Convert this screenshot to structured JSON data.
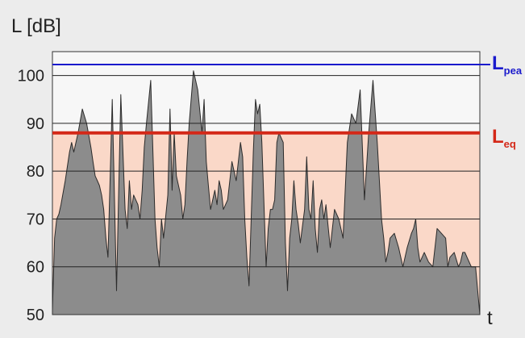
{
  "chart_data": {
    "type": "area",
    "ylabel": "L [dB]",
    "xlabel": "t",
    "ylim": [
      50,
      105
    ],
    "yticks": [
      50,
      60,
      70,
      80,
      90,
      100
    ],
    "grid": true,
    "colors": {
      "figure_bg": "#ececec",
      "plot_bg": "#f7f7f7",
      "below_leq_band": "#fad8c8",
      "area_fill": "#8c8c8c",
      "area_line": "#2b2b2b",
      "gridline": "#222222",
      "lpeak": "#1a1acc",
      "leq": "#d42818"
    },
    "reference_lines": [
      {
        "key": "lpeak",
        "label_main": "L",
        "label_sub": "pea",
        "value": 102.3,
        "color": "#1a1acc"
      },
      {
        "key": "leq",
        "label_main": "L",
        "label_sub": "eq",
        "value": 88,
        "color": "#d42818"
      }
    ],
    "series": [
      {
        "x": [
          0,
          0.5,
          1,
          1.5,
          2,
          3,
          4,
          4.5,
          5,
          6,
          7,
          8,
          9,
          9.5,
          10,
          10.5,
          11,
          11.5,
          12,
          12.5,
          13,
          14,
          15,
          16,
          17,
          17.5,
          18,
          18.5,
          19,
          20,
          20.5,
          21,
          21.5,
          22,
          23,
          24,
          24.5,
          25,
          25.5,
          26,
          27,
          27.5,
          28,
          28.5,
          29,
          30,
          30.5,
          31,
          31.5,
          32,
          33,
          34,
          35,
          35.5,
          36,
          36.5,
          37,
          38,
          38.5,
          39,
          39.5,
          40,
          41,
          42,
          43,
          44,
          44.5,
          45,
          45.5,
          46,
          47,
          47.5,
          48,
          48.5,
          49,
          50,
          50.5,
          51,
          51.5,
          52,
          52.5,
          53,
          54,
          54.5,
          55,
          55.5,
          56,
          56.5,
          57,
          57.5,
          58,
          59,
          59.5,
          60,
          60.5,
          61,
          61.5,
          62,
          62.5,
          63,
          63.5,
          64,
          65,
          66,
          67,
          68,
          69,
          70,
          71,
          72,
          73,
          74,
          75,
          76,
          77,
          77.5,
          78,
          78.5,
          79,
          80,
          81,
          82,
          83,
          84,
          84.5,
          85,
          85.5,
          86,
          87,
          88,
          89,
          90,
          91,
          92,
          92.5,
          93,
          94,
          95,
          95.5,
          96,
          96.5,
          97,
          98,
          99,
          100
        ],
        "y": [
          51,
          66,
          70,
          71,
          73,
          78,
          84,
          86,
          84,
          88,
          93,
          90,
          85,
          82,
          79,
          78,
          77,
          75,
          72,
          66,
          62,
          95,
          55,
          96,
          72,
          68,
          78,
          72,
          75,
          73,
          70,
          76,
          85,
          90,
          99,
          70,
          64,
          60,
          70,
          66,
          75,
          93,
          76,
          88,
          79,
          75,
          70,
          73,
          82,
          90,
          101,
          97,
          88,
          95,
          82,
          77,
          72,
          76,
          73,
          78,
          76,
          72,
          74,
          82,
          78,
          86,
          83,
          70,
          62,
          56,
          84,
          95,
          92,
          94,
          86,
          60,
          68,
          72,
          72,
          74,
          86,
          88,
          86,
          65,
          55,
          66,
          70,
          78,
          72,
          69,
          65,
          72,
          83,
          72,
          70,
          78,
          68,
          63,
          72,
          74,
          70,
          73,
          64,
          72,
          70,
          66,
          86,
          92,
          90,
          97,
          74,
          88,
          99,
          86,
          70,
          66,
          61,
          63,
          66,
          67,
          64,
          60,
          64,
          67,
          68,
          70,
          64,
          61,
          63,
          61,
          60,
          68,
          67,
          66,
          60,
          62,
          63,
          60,
          61,
          63,
          63,
          62,
          60,
          60,
          50
        ]
      }
    ]
  }
}
